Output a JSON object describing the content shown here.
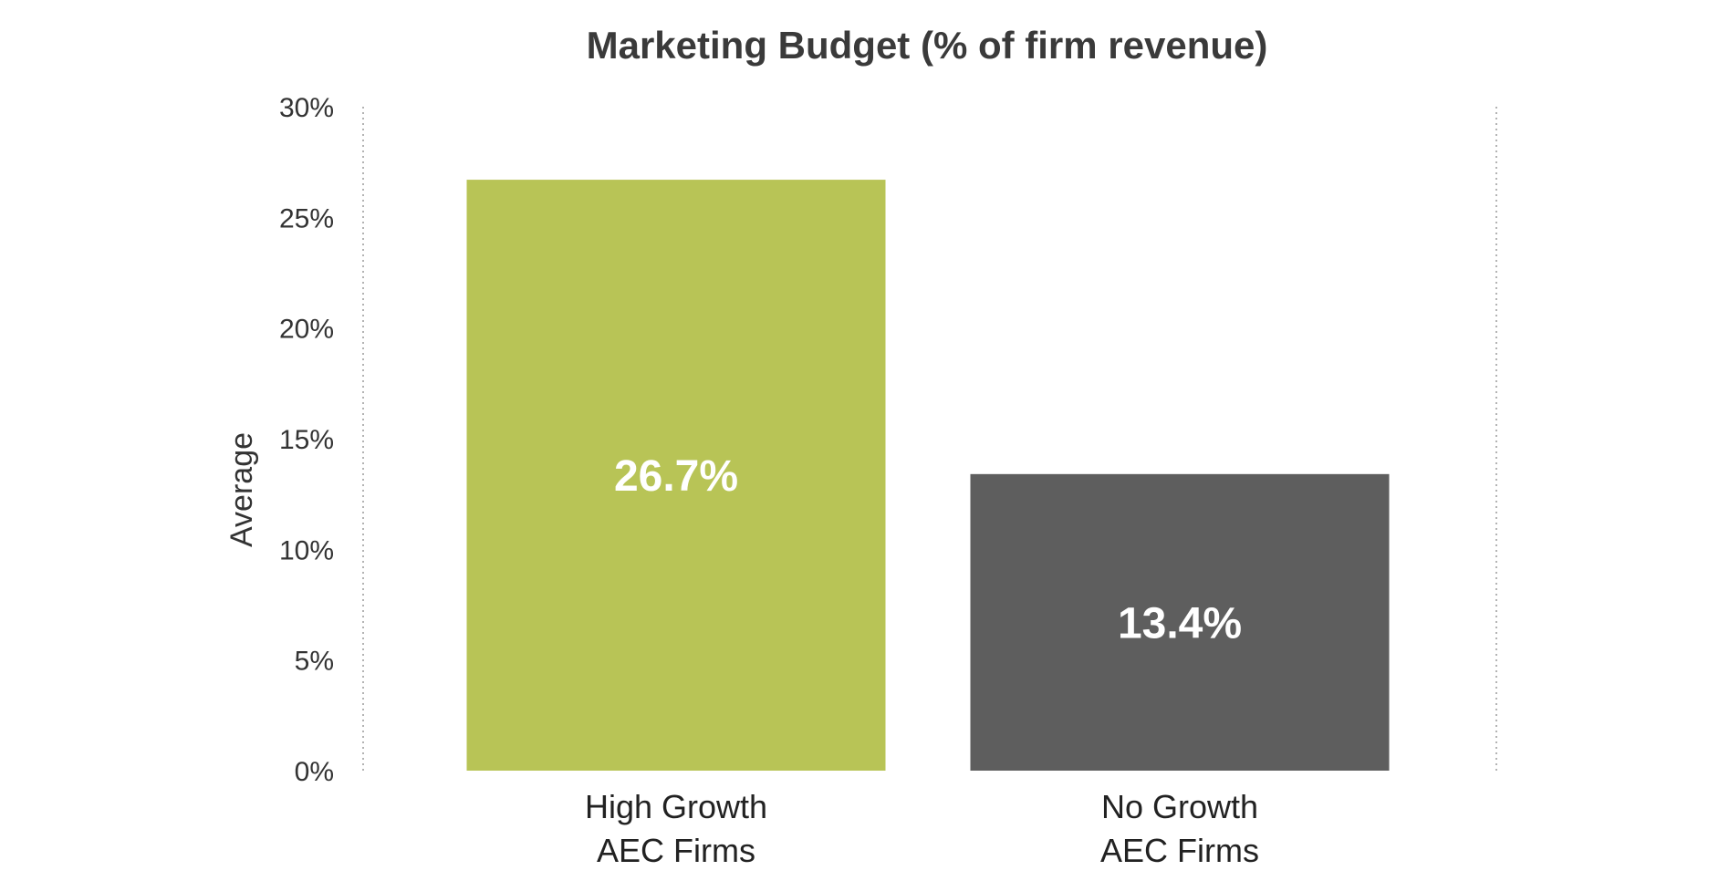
{
  "chart_data": {
    "type": "bar",
    "title": "Marketing Budget (% of firm revenue)",
    "xlabel": "",
    "ylabel": "Average",
    "categories": [
      [
        "High Growth",
        "AEC Firms"
      ],
      [
        "No Growth",
        "AEC Firms"
      ]
    ],
    "values": [
      26.7,
      13.4
    ],
    "data_labels": [
      "26.7%",
      "13.4%"
    ],
    "colors": [
      "#b8c456",
      "#5e5e5e"
    ],
    "ylim": [
      0,
      30
    ],
    "yticks": [
      0,
      5,
      10,
      15,
      20,
      25,
      30
    ],
    "ytick_labels": [
      "0%",
      "5%",
      "10%",
      "15%",
      "20%",
      "25%",
      "30%"
    ],
    "grid": false,
    "legend": "none"
  }
}
